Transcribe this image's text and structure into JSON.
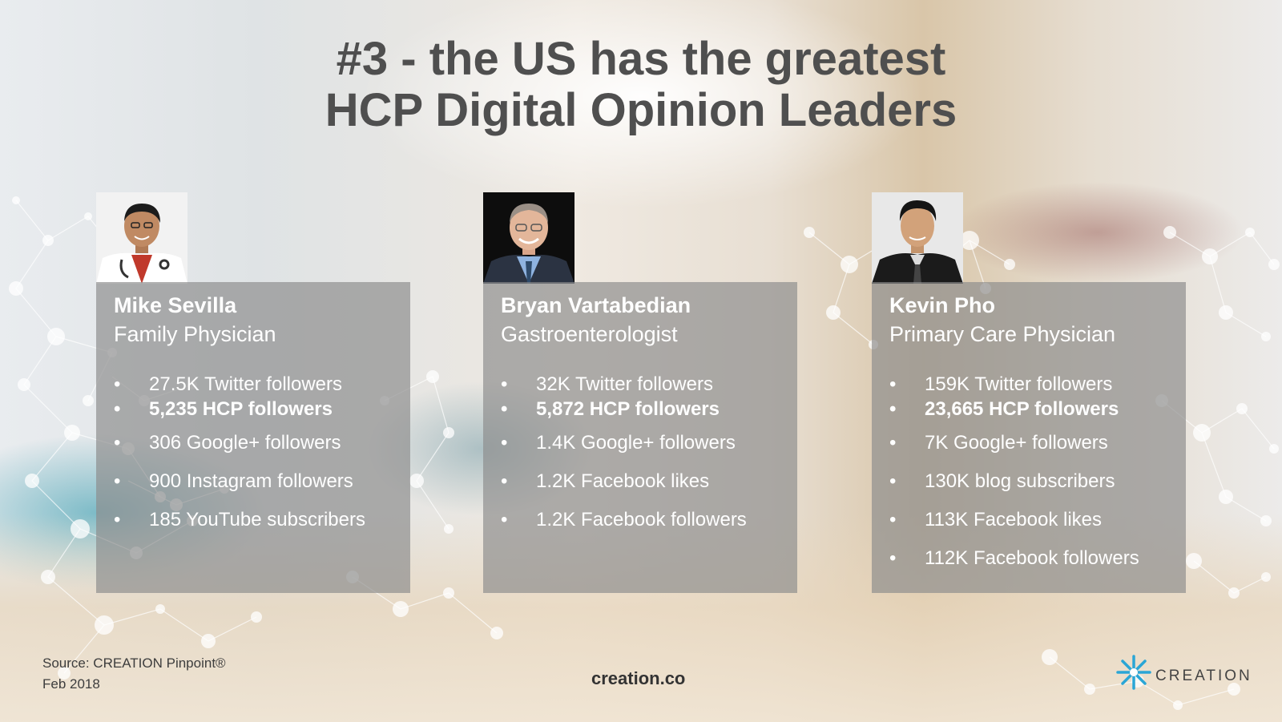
{
  "title": {
    "line1": "#3 - the US has the greatest",
    "line2": "HCP Digital Opinion Leaders"
  },
  "profiles": [
    {
      "name": "Mike Sevilla",
      "role": "Family Physician",
      "stats": [
        "27.5K Twitter followers",
        "5,235 HCP followers",
        "306 Google+ followers",
        "900 Instagram followers",
        "185 YouTube subscribers"
      ]
    },
    {
      "name": "Bryan Vartabedian",
      "role": "Gastroenterologist",
      "stats": [
        "32K Twitter followers",
        "5,872 HCP followers",
        "1.4K Google+ followers",
        "1.2K Facebook likes",
        "1.2K Facebook followers"
      ]
    },
    {
      "name": "Kevin Pho",
      "role": "Primary Care Physician",
      "stats": [
        "159K Twitter followers",
        "23,665 HCP followers",
        "7K Google+ followers",
        "130K blog subscribers",
        "113K Facebook likes",
        "112K Facebook followers"
      ]
    }
  ],
  "footer": {
    "source_line1": "Source: CREATION Pinpoint®",
    "source_line2": "Feb 2018",
    "url": "creation.co",
    "logo_text": "CREATION"
  },
  "colors": {
    "title": "#4f4f4f",
    "card": "#8c8c8c",
    "logo_accent": "#2aa6d6"
  }
}
